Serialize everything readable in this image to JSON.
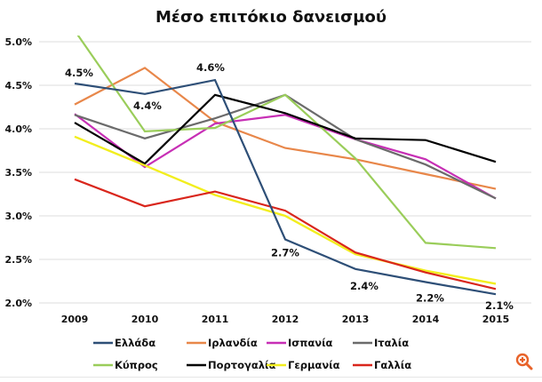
{
  "chart_data": {
    "type": "line",
    "title": "Μέσο επιτόκιο δανεισμού",
    "xlabel": "",
    "ylabel": "",
    "categories": [
      "2009",
      "2010",
      "2011",
      "2012",
      "2013",
      "2014",
      "2015"
    ],
    "ylim": [
      2.0,
      5.0
    ],
    "yticks": [
      2.0,
      2.5,
      3.0,
      3.5,
      4.0,
      4.5,
      5.0
    ],
    "ytick_labels": [
      "2.0%",
      "2.5%",
      "3.0%",
      "3.5%",
      "4.0%",
      "4.5%",
      "5.0%"
    ],
    "grid": true,
    "legend_position": "bottom",
    "series": [
      {
        "name": "Ελλάδα",
        "color": "#2e4f77",
        "values": [
          4.52,
          4.4,
          4.56,
          2.73,
          2.39,
          2.24,
          2.1
        ]
      },
      {
        "name": "Ιρλανδία",
        "color": "#e8874a",
        "values": [
          4.28,
          4.7,
          4.08,
          3.78,
          3.65,
          3.48,
          3.31
        ]
      },
      {
        "name": "Ισπανία",
        "color": "#c72fb5",
        "values": [
          4.17,
          3.56,
          4.06,
          4.16,
          3.88,
          3.65,
          3.2
        ]
      },
      {
        "name": "Ιταλία",
        "color": "#6b6b6b",
        "values": [
          4.16,
          3.89,
          4.12,
          4.39,
          3.88,
          3.59,
          3.2
        ]
      },
      {
        "name": "Κύπρος",
        "color": "#9acd5a",
        "values": [
          5.13,
          3.97,
          4.01,
          4.39,
          3.66,
          2.69,
          2.63
        ]
      },
      {
        "name": "Πορτογαλία",
        "color": "#000000",
        "values": [
          4.07,
          3.6,
          4.39,
          4.18,
          3.89,
          3.87,
          3.62
        ]
      },
      {
        "name": "Γερμανία",
        "color": "#f2ee1e",
        "values": [
          3.91,
          3.58,
          3.24,
          3.0,
          2.56,
          2.37,
          2.22
        ]
      },
      {
        "name": "Γαλλία",
        "color": "#d9261c",
        "values": [
          3.42,
          3.11,
          3.28,
          3.06,
          2.58,
          2.35,
          2.16
        ]
      }
    ],
    "annotations": [
      {
        "series": "Ελλάδα",
        "index": 0,
        "text": "4.5%"
      },
      {
        "series": "Ελλάδα",
        "index": 1,
        "text": "4.4%"
      },
      {
        "series": "Ελλάδα",
        "index": 2,
        "text": "4.6%"
      },
      {
        "series": "Ελλάδα",
        "index": 3,
        "text": "2.7%"
      },
      {
        "series": "Ελλάδα",
        "index": 4,
        "text": "2.4%"
      },
      {
        "series": "Ελλάδα",
        "index": 5,
        "text": "2.2%"
      },
      {
        "series": "Ελλάδα",
        "index": 6,
        "text": "2.1%"
      }
    ]
  },
  "ui": {
    "zoom_icon": "zoom-in-icon",
    "zoom_icon_color": "#e8632a"
  }
}
